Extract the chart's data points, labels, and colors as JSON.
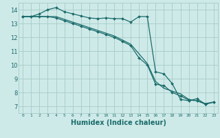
{
  "xlabel": "Humidex (Indice chaleur)",
  "bg_color": "#ceeae8",
  "grid_color": "#aacfcc",
  "line_color": "#1a6b6b",
  "xlim": [
    -0.5,
    23.5
  ],
  "ylim": [
    6.5,
    14.5
  ],
  "xticks": [
    0,
    1,
    2,
    3,
    4,
    5,
    6,
    7,
    8,
    9,
    10,
    11,
    12,
    13,
    14,
    15,
    16,
    17,
    18,
    19,
    20,
    21,
    22,
    23
  ],
  "yticks": [
    7,
    8,
    9,
    10,
    11,
    12,
    13,
    14
  ],
  "line1_x": [
    0,
    1,
    2,
    3,
    4,
    5,
    6,
    7,
    8,
    9,
    10,
    11,
    12,
    13,
    14,
    15,
    16,
    17,
    18,
    19,
    20,
    21,
    22,
    23
  ],
  "line1_y": [
    13.5,
    13.5,
    13.7,
    14.0,
    14.15,
    13.85,
    13.7,
    13.55,
    13.4,
    13.35,
    13.4,
    13.35,
    13.35,
    13.1,
    13.5,
    13.5,
    9.5,
    9.35,
    8.65,
    7.5,
    7.4,
    7.55,
    7.15,
    7.3
  ],
  "line2_x": [
    0,
    1,
    2,
    3,
    4,
    5,
    6,
    7,
    8,
    9,
    10,
    11,
    12,
    13,
    14,
    15,
    16,
    17,
    18,
    19,
    20,
    21,
    22,
    23
  ],
  "line2_y": [
    13.5,
    13.5,
    13.5,
    13.5,
    13.4,
    13.2,
    13.0,
    12.8,
    12.6,
    12.4,
    12.2,
    12.0,
    11.7,
    11.4,
    10.5,
    10.0,
    8.6,
    8.5,
    8.0,
    7.75,
    7.45,
    7.4,
    7.15,
    7.3
  ],
  "line3_x": [
    0,
    1,
    2,
    3,
    4,
    5,
    6,
    7,
    8,
    9,
    10,
    11,
    12,
    13,
    14,
    15,
    16,
    17,
    18,
    19,
    20,
    21,
    22,
    23
  ],
  "line3_y": [
    13.5,
    13.5,
    13.5,
    13.5,
    13.5,
    13.3,
    13.1,
    12.9,
    12.7,
    12.5,
    12.3,
    12.1,
    11.8,
    11.5,
    10.8,
    10.1,
    8.8,
    8.3,
    8.1,
    7.9,
    7.5,
    7.4,
    7.2,
    7.3
  ]
}
